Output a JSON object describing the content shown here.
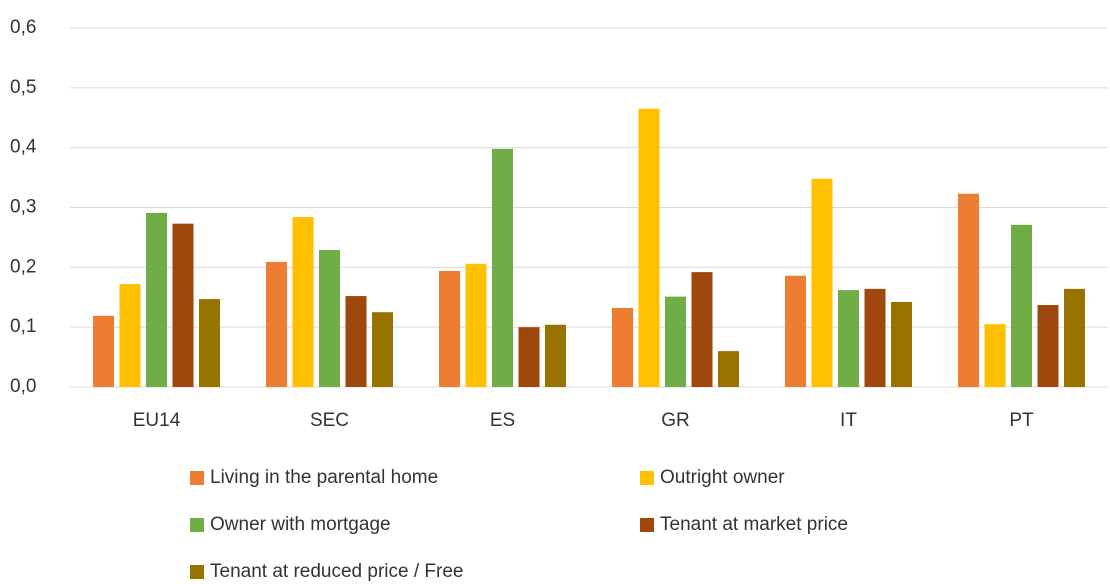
{
  "chart_data": {
    "type": "bar",
    "categories": [
      "EU14",
      "SEC",
      "ES",
      "GR",
      "IT",
      "PT"
    ],
    "series": [
      {
        "name": "Living in the parental home",
        "color": "#ed7d31",
        "values": [
          0.119,
          0.209,
          0.194,
          0.132,
          0.186,
          0.323
        ]
      },
      {
        "name": "Outright owner",
        "color": "#ffc000",
        "values": [
          0.172,
          0.284,
          0.206,
          0.465,
          0.348,
          0.105
        ]
      },
      {
        "name": "Owner with mortgage",
        "color": "#70ad47",
        "values": [
          0.291,
          0.229,
          0.398,
          0.151,
          0.162,
          0.271
        ]
      },
      {
        "name": "Tenant at market price",
        "color": "#9e480e",
        "values": [
          0.273,
          0.152,
          0.1,
          0.192,
          0.164,
          0.137
        ]
      },
      {
        "name": "Tenant at reduced price / Free",
        "color": "#997300",
        "values": [
          0.147,
          0.125,
          0.104,
          0.06,
          0.142,
          0.164
        ]
      }
    ],
    "ylim": [
      0,
      0.6
    ],
    "yticks": [
      {
        "value": 0,
        "label": "0,0"
      },
      {
        "value": 0.1,
        "label": "0,1"
      },
      {
        "value": 0.2,
        "label": "0,2"
      },
      {
        "value": 0.3,
        "label": "0,3"
      },
      {
        "value": 0.4,
        "label": "0,4"
      },
      {
        "value": 0.5,
        "label": "0,5"
      },
      {
        "value": 0.6,
        "label": "0,6"
      }
    ],
    "grid": true
  }
}
